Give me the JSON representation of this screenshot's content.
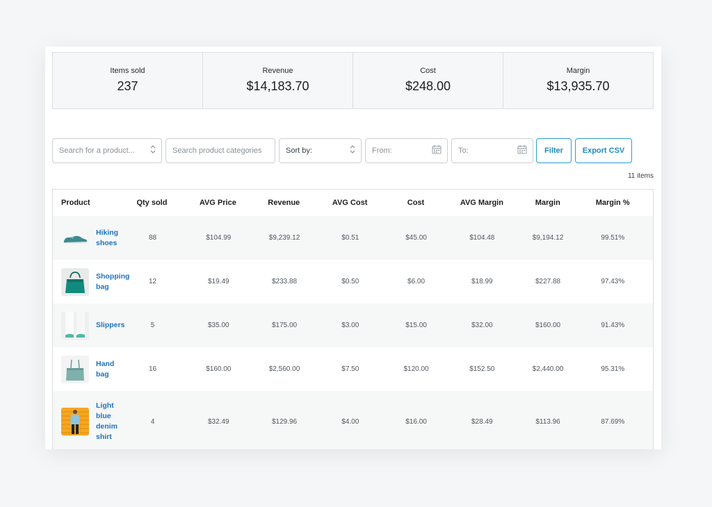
{
  "stats": [
    {
      "label": "Items sold",
      "value": "237"
    },
    {
      "label": "Revenue",
      "value": "$14,183.70"
    },
    {
      "label": "Cost",
      "value": "$248.00"
    },
    {
      "label": "Margin",
      "value": "$13,935.70"
    }
  ],
  "filters": {
    "product_search_placeholder": "Search for a product...",
    "category_search_placeholder": "Search product categories",
    "sort_label": "Sort by:",
    "from_placeholder": "From:",
    "to_placeholder": "To:",
    "filter_button": "Filter",
    "export_button": "Export CSV"
  },
  "item_count": "11 items",
  "table": {
    "headers": [
      "Product",
      "Qty sold",
      "AVG Price",
      "Revenue",
      "AVG Cost",
      "Cost",
      "AVG Margin",
      "Margin",
      "Margin %"
    ],
    "rows": [
      {
        "product": "Hiking shoes",
        "icon": "hiking-shoes-thumbnail",
        "qty": "88",
        "avg_price": "$104.99",
        "revenue": "$9,239.12",
        "avg_cost": "$0.51",
        "cost": "$45.00",
        "avg_margin": "$104.48",
        "margin": "$9,194.12",
        "margin_pct": "99.51%"
      },
      {
        "product": "Shopping bag",
        "icon": "shopping-bag-thumbnail",
        "qty": "12",
        "avg_price": "$19.49",
        "revenue": "$233.88",
        "avg_cost": "$0.50",
        "cost": "$6.00",
        "avg_margin": "$18.99",
        "margin": "$227.88",
        "margin_pct": "97.43%"
      },
      {
        "product": "Slippers",
        "icon": "slippers-thumbnail",
        "qty": "5",
        "avg_price": "$35.00",
        "revenue": "$175.00",
        "avg_cost": "$3.00",
        "cost": "$15.00",
        "avg_margin": "$32.00",
        "margin": "$160.00",
        "margin_pct": "91.43%"
      },
      {
        "product": "Hand bag",
        "icon": "hand-bag-thumbnail",
        "qty": "16",
        "avg_price": "$160.00",
        "revenue": "$2,560.00",
        "avg_cost": "$7.50",
        "cost": "$120.00",
        "avg_margin": "$152.50",
        "margin": "$2,440.00",
        "margin_pct": "95.31%"
      },
      {
        "product": "Light blue denim shirt",
        "icon": "denim-shirt-thumbnail",
        "qty": "4",
        "avg_price": "$32.49",
        "revenue": "$129.96",
        "avg_cost": "$4.00",
        "cost": "$16.00",
        "avg_margin": "$28.49",
        "margin": "$113.96",
        "margin_pct": "87.69%"
      }
    ]
  },
  "colors": {
    "link": "#1e73be",
    "button": "#2a9ed0",
    "row_alt": "#f6f7f7"
  }
}
